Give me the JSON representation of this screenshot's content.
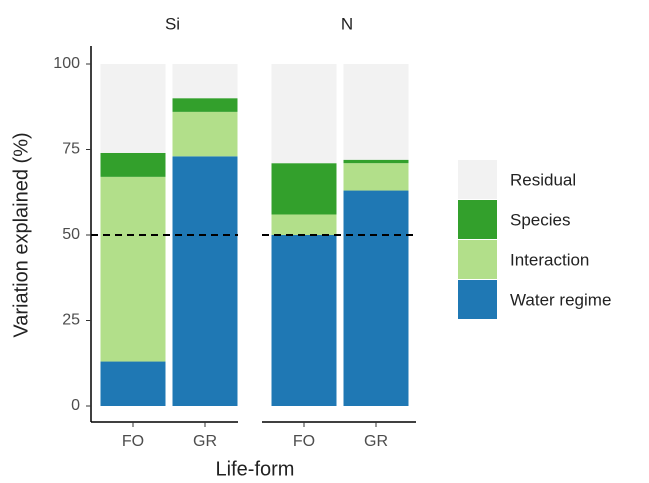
{
  "chart_data": {
    "type": "bar",
    "stacked": true,
    "facets": [
      "Si",
      "N"
    ],
    "categories": [
      "FO",
      "GR"
    ],
    "series": [
      {
        "name": "Water regime",
        "color": "#1f78b4",
        "values": [
          [
            13,
            73
          ],
          [
            50,
            63
          ]
        ]
      },
      {
        "name": "Interaction",
        "color": "#b2df8a",
        "values": [
          [
            54,
            13
          ],
          [
            6,
            8
          ]
        ]
      },
      {
        "name": "Species",
        "color": "#33a02c",
        "values": [
          [
            7,
            4
          ],
          [
            15,
            1
          ]
        ]
      },
      {
        "name": "Residual",
        "color": "#f2f2f2",
        "values": [
          [
            26,
            10
          ],
          [
            29,
            28
          ]
        ]
      }
    ],
    "xlabel": "Life-form",
    "ylabel": "Variation explained (%)",
    "ylim": [
      0,
      100
    ],
    "yticks": [
      0,
      25,
      50,
      75,
      100
    ],
    "hline": 50,
    "legend": "right"
  }
}
